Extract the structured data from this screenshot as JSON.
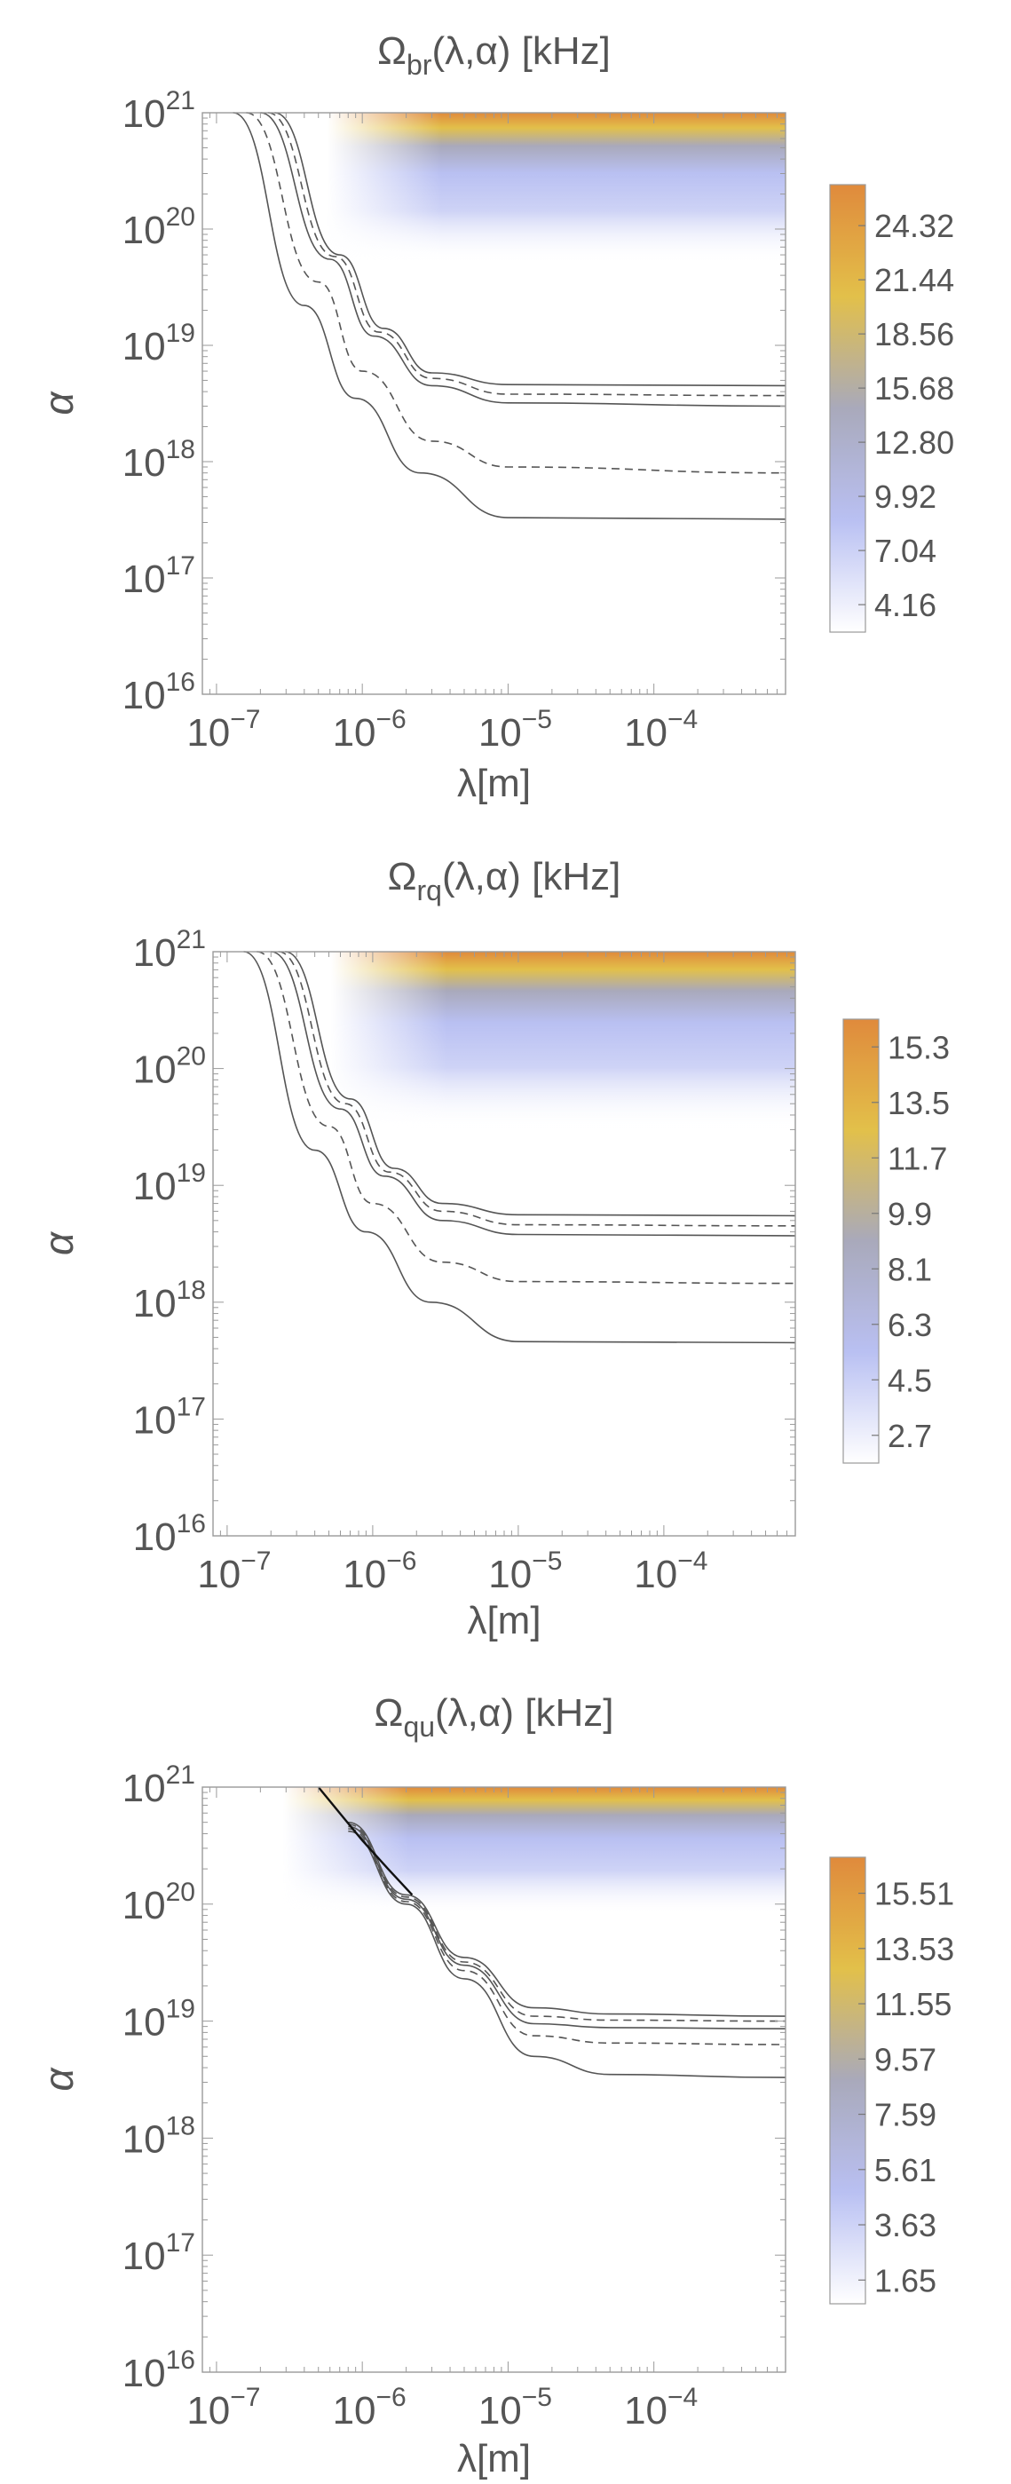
{
  "chart_data": [
    {
      "type": "heatmap",
      "title": "Ω",
      "title_sub": "br",
      "title_args": "(λ,α) [kHz]",
      "xlabel": "λ[m]",
      "ylabel": "α",
      "x_scale": "log",
      "y_scale": "log",
      "xlim": [
        8e-08,
        0.0008
      ],
      "ylim": [
        1e+16,
        1e+21
      ],
      "x_ticks": [
        {
          "value": 1e-07,
          "base": "10",
          "exp": "−7"
        },
        {
          "value": 1e-06,
          "base": "10",
          "exp": "−6"
        },
        {
          "value": 1e-05,
          "base": "10",
          "exp": "−5"
        },
        {
          "value": 0.0001,
          "base": "10",
          "exp": "−4"
        }
      ],
      "y_ticks": [
        {
          "value": 1e+16,
          "base": "10",
          "exp": "16"
        },
        {
          "value": 1e+17,
          "base": "10",
          "exp": "17"
        },
        {
          "value": 1e+18,
          "base": "10",
          "exp": "18"
        },
        {
          "value": 1e+19,
          "base": "10",
          "exp": "19"
        },
        {
          "value": 1e+20,
          "base": "10",
          "exp": "20"
        },
        {
          "value": 1e+21,
          "base": "10",
          "exp": "21"
        }
      ],
      "colorbar": {
        "min": 2.7,
        "max": 26.5,
        "ticks": [
          "24.32",
          "21.44",
          "18.56",
          "15.68",
          "12.80",
          "9.92",
          "7.04",
          "4.16"
        ],
        "colors": [
          "#ffffff",
          "#b9c0f2",
          "#a9a9bb",
          "#e2c04a",
          "#e08a3c"
        ]
      },
      "field": {
        "x_onset": 1e-06,
        "y_fade_start": 5e+19,
        "y_top": 1e+21
      },
      "contours": [
        {
          "style": "solid",
          "points": [
            [
              2e-07,
              1e+21
            ],
            [
              6e-07,
              5.5e+19
            ],
            [
              1.2e-06,
              1.2e+19
            ],
            [
              3e-06,
              4.5e+18
            ],
            [
              1e-05,
              3.2e+18
            ],
            [
              0.0008,
              3e+18
            ]
          ]
        },
        {
          "style": "dashed",
          "points": [
            [
              2.25e-07,
              1e+21
            ],
            [
              6.5e-07,
              5.8e+19
            ],
            [
              1.3e-06,
              1.3e+19
            ],
            [
              3e-06,
              5.2e+18
            ],
            [
              1e-05,
              3.8e+18
            ],
            [
              0.0008,
              3.7e+18
            ]
          ]
        },
        {
          "style": "solid",
          "points": [
            [
              2.5e-07,
              1e+21
            ],
            [
              7e-07,
              6e+19
            ],
            [
              1.4e-06,
              1.4e+19
            ],
            [
              3e-06,
              5.8e+18
            ],
            [
              1e-05,
              4.6e+18
            ],
            [
              0.0008,
              4.5e+18
            ]
          ]
        },
        {
          "style": "dashed",
          "points": [
            [
              1.6e-07,
              1e+21
            ],
            [
              5e-07,
              3.5e+19
            ],
            [
              1e-06,
              6e+18
            ],
            [
              3e-06,
              1.5e+18
            ],
            [
              1e-05,
              9e+17
            ],
            [
              0.0008,
              8e+17
            ]
          ]
        },
        {
          "style": "solid",
          "points": [
            [
              1.3e-07,
              1e+21
            ],
            [
              4e-07,
              2.2e+19
            ],
            [
              9e-07,
              3.5e+18
            ],
            [
              2.5e-06,
              8e+17
            ],
            [
              1e-05,
              3.3e+17
            ],
            [
              0.0008,
              3.2e+17
            ]
          ]
        }
      ]
    },
    {
      "type": "heatmap",
      "title": "Ω",
      "title_sub": "rq",
      "title_args": "(λ,α) [kHz]",
      "xlabel": "λ[m]",
      "ylabel": "α",
      "x_scale": "log",
      "y_scale": "log",
      "xlim": [
        8e-08,
        0.0008
      ],
      "ylim": [
        1e+16,
        1e+21
      ],
      "x_ticks": [
        {
          "value": 1e-07,
          "base": "10",
          "exp": "−7"
        },
        {
          "value": 1e-06,
          "base": "10",
          "exp": "−6"
        },
        {
          "value": 1e-05,
          "base": "10",
          "exp": "−5"
        },
        {
          "value": 0.0001,
          "base": "10",
          "exp": "−4"
        }
      ],
      "y_ticks": [
        {
          "value": 1e+16,
          "base": "10",
          "exp": "16"
        },
        {
          "value": 1e+17,
          "base": "10",
          "exp": "17"
        },
        {
          "value": 1e+18,
          "base": "10",
          "exp": "18"
        },
        {
          "value": 1e+19,
          "base": "10",
          "exp": "19"
        },
        {
          "value": 1e+20,
          "base": "10",
          "exp": "20"
        },
        {
          "value": 1e+21,
          "base": "10",
          "exp": "21"
        }
      ],
      "colorbar": {
        "min": 1.8,
        "max": 16.2,
        "ticks": [
          "15.3",
          "13.5",
          "11.7",
          "9.9",
          "8.1",
          "6.3",
          "4.5",
          "2.7"
        ],
        "colors": [
          "#ffffff",
          "#b9c0f2",
          "#a9a9bb",
          "#e2c04a",
          "#e08a3c"
        ]
      },
      "field": {
        "x_onset": 9e-07,
        "y_fade_start": 3e+19,
        "y_top": 1e+21
      },
      "contours": [
        {
          "style": "solid",
          "points": [
            [
              2e-07,
              1e+21
            ],
            [
              6e-07,
              4.5e+19
            ],
            [
              1.2e-06,
              1.2e+19
            ],
            [
              3e-06,
              5e+18
            ],
            [
              1e-05,
              3.8e+18
            ],
            [
              0.0008,
              3.7e+18
            ]
          ]
        },
        {
          "style": "dashed",
          "points": [
            [
              2.25e-07,
              1e+21
            ],
            [
              6.5e-07,
              5e+19
            ],
            [
              1.3e-06,
              1.3e+19
            ],
            [
              3e-06,
              6e+18
            ],
            [
              1e-05,
              4.6e+18
            ],
            [
              0.0008,
              4.5e+18
            ]
          ]
        },
        {
          "style": "solid",
          "points": [
            [
              2.5e-07,
              1e+21
            ],
            [
              7e-07,
              5.5e+19
            ],
            [
              1.4e-06,
              1.4e+19
            ],
            [
              3e-06,
              7e+18
            ],
            [
              1e-05,
              5.6e+18
            ],
            [
              0.0008,
              5.5e+18
            ]
          ]
        },
        {
          "style": "dashed",
          "points": [
            [
              1.6e-07,
              1e+21
            ],
            [
              5e-07,
              3.2e+19
            ],
            [
              1e-06,
              7e+18
            ],
            [
              3e-06,
              2.2e+18
            ],
            [
              1e-05,
              1.5e+18
            ],
            [
              0.0008,
              1.45e+18
            ]
          ]
        },
        {
          "style": "solid",
          "points": [
            [
              1.3e-07,
              1e+21
            ],
            [
              4e-07,
              2e+19
            ],
            [
              9e-07,
              4e+18
            ],
            [
              2.5e-06,
              1e+18
            ],
            [
              1e-05,
              4.6e+17
            ],
            [
              0.0008,
              4.5e+17
            ]
          ]
        }
      ]
    },
    {
      "type": "heatmap",
      "title": "Ω",
      "title_sub": "qu",
      "title_args": "(λ,α) [kHz]",
      "xlabel": "λ[m]",
      "ylabel": "α",
      "x_scale": "log",
      "y_scale": "log",
      "xlim": [
        8e-08,
        0.0008
      ],
      "ylim": [
        1e+16,
        1e+21
      ],
      "x_ticks": [
        {
          "value": 1e-07,
          "base": "10",
          "exp": "−7"
        },
        {
          "value": 1e-06,
          "base": "10",
          "exp": "−6"
        },
        {
          "value": 1e-05,
          "base": "10",
          "exp": "−5"
        },
        {
          "value": 0.0001,
          "base": "10",
          "exp": "−4"
        }
      ],
      "y_ticks": [
        {
          "value": 1e+16,
          "base": "10",
          "exp": "16"
        },
        {
          "value": 1e+17,
          "base": "10",
          "exp": "17"
        },
        {
          "value": 1e+18,
          "base": "10",
          "exp": "18"
        },
        {
          "value": 1e+19,
          "base": "10",
          "exp": "19"
        },
        {
          "value": 1e+20,
          "base": "10",
          "exp": "20"
        },
        {
          "value": 1e+21,
          "base": "10",
          "exp": "21"
        }
      ],
      "colorbar": {
        "min": 0.8,
        "max": 16.8,
        "ticks": [
          "15.51",
          "13.53",
          "11.55",
          "9.57",
          "7.59",
          "5.61",
          "3.63",
          "1.65"
        ],
        "colors": [
          "#ffffff",
          "#b9c0f2",
          "#a9a9bb",
          "#e2c04a",
          "#e08a3c"
        ]
      },
      "field": {
        "x_onset": 5e-07,
        "y_fade_start": 8e+19,
        "y_top": 1e+21
      },
      "boundary": [
        [
          5e-07,
          1e+21
        ],
        [
          7e-07,
          6e+20
        ],
        [
          1e-06,
          3.5e+20
        ],
        [
          1.5e-06,
          2e+20
        ],
        [
          2.2e-06,
          1.2e+20
        ]
      ],
      "contours": [
        {
          "style": "solid",
          "points": [
            [
              8e-07,
              5e+20
            ],
            [
              2e-06,
              1.2e+20
            ],
            [
              5e-06,
              3.5e+19
            ],
            [
              1.5e-05,
              1.3e+19
            ],
            [
              5e-05,
              1.15e+19
            ],
            [
              0.0008,
              1.1e+19
            ]
          ]
        },
        {
          "style": "dashed",
          "points": [
            [
              8e-07,
              4.8e+20
            ],
            [
              2e-06,
              1.15e+20
            ],
            [
              5e-06,
              3.2e+19
            ],
            [
              1.5e-05,
              1.1e+19
            ],
            [
              5e-05,
              1.02e+19
            ],
            [
              0.0008,
              1e+19
            ]
          ]
        },
        {
          "style": "solid",
          "points": [
            [
              8e-07,
              4.6e+20
            ],
            [
              2e-06,
              1.1e+20
            ],
            [
              5e-06,
              3e+19
            ],
            [
              1.5e-05,
              9.5e+18
            ],
            [
              5e-05,
              8.8e+18
            ],
            [
              0.0008,
              8.6e+18
            ]
          ]
        },
        {
          "style": "dashed",
          "points": [
            [
              8e-07,
              4.4e+20
            ],
            [
              2e-06,
              1.05e+20
            ],
            [
              5e-06,
              2.7e+19
            ],
            [
              1.5e-05,
              7.5e+18
            ],
            [
              5e-05,
              6.5e+18
            ],
            [
              0.0008,
              6.3e+18
            ]
          ]
        },
        {
          "style": "solid",
          "points": [
            [
              8e-07,
              4.2e+20
            ],
            [
              2e-06,
              1e+20
            ],
            [
              5e-06,
              2.3e+19
            ],
            [
              1.5e-05,
              5e+18
            ],
            [
              5e-05,
              3.5e+18
            ],
            [
              0.0008,
              3.3e+18
            ]
          ]
        }
      ]
    }
  ]
}
